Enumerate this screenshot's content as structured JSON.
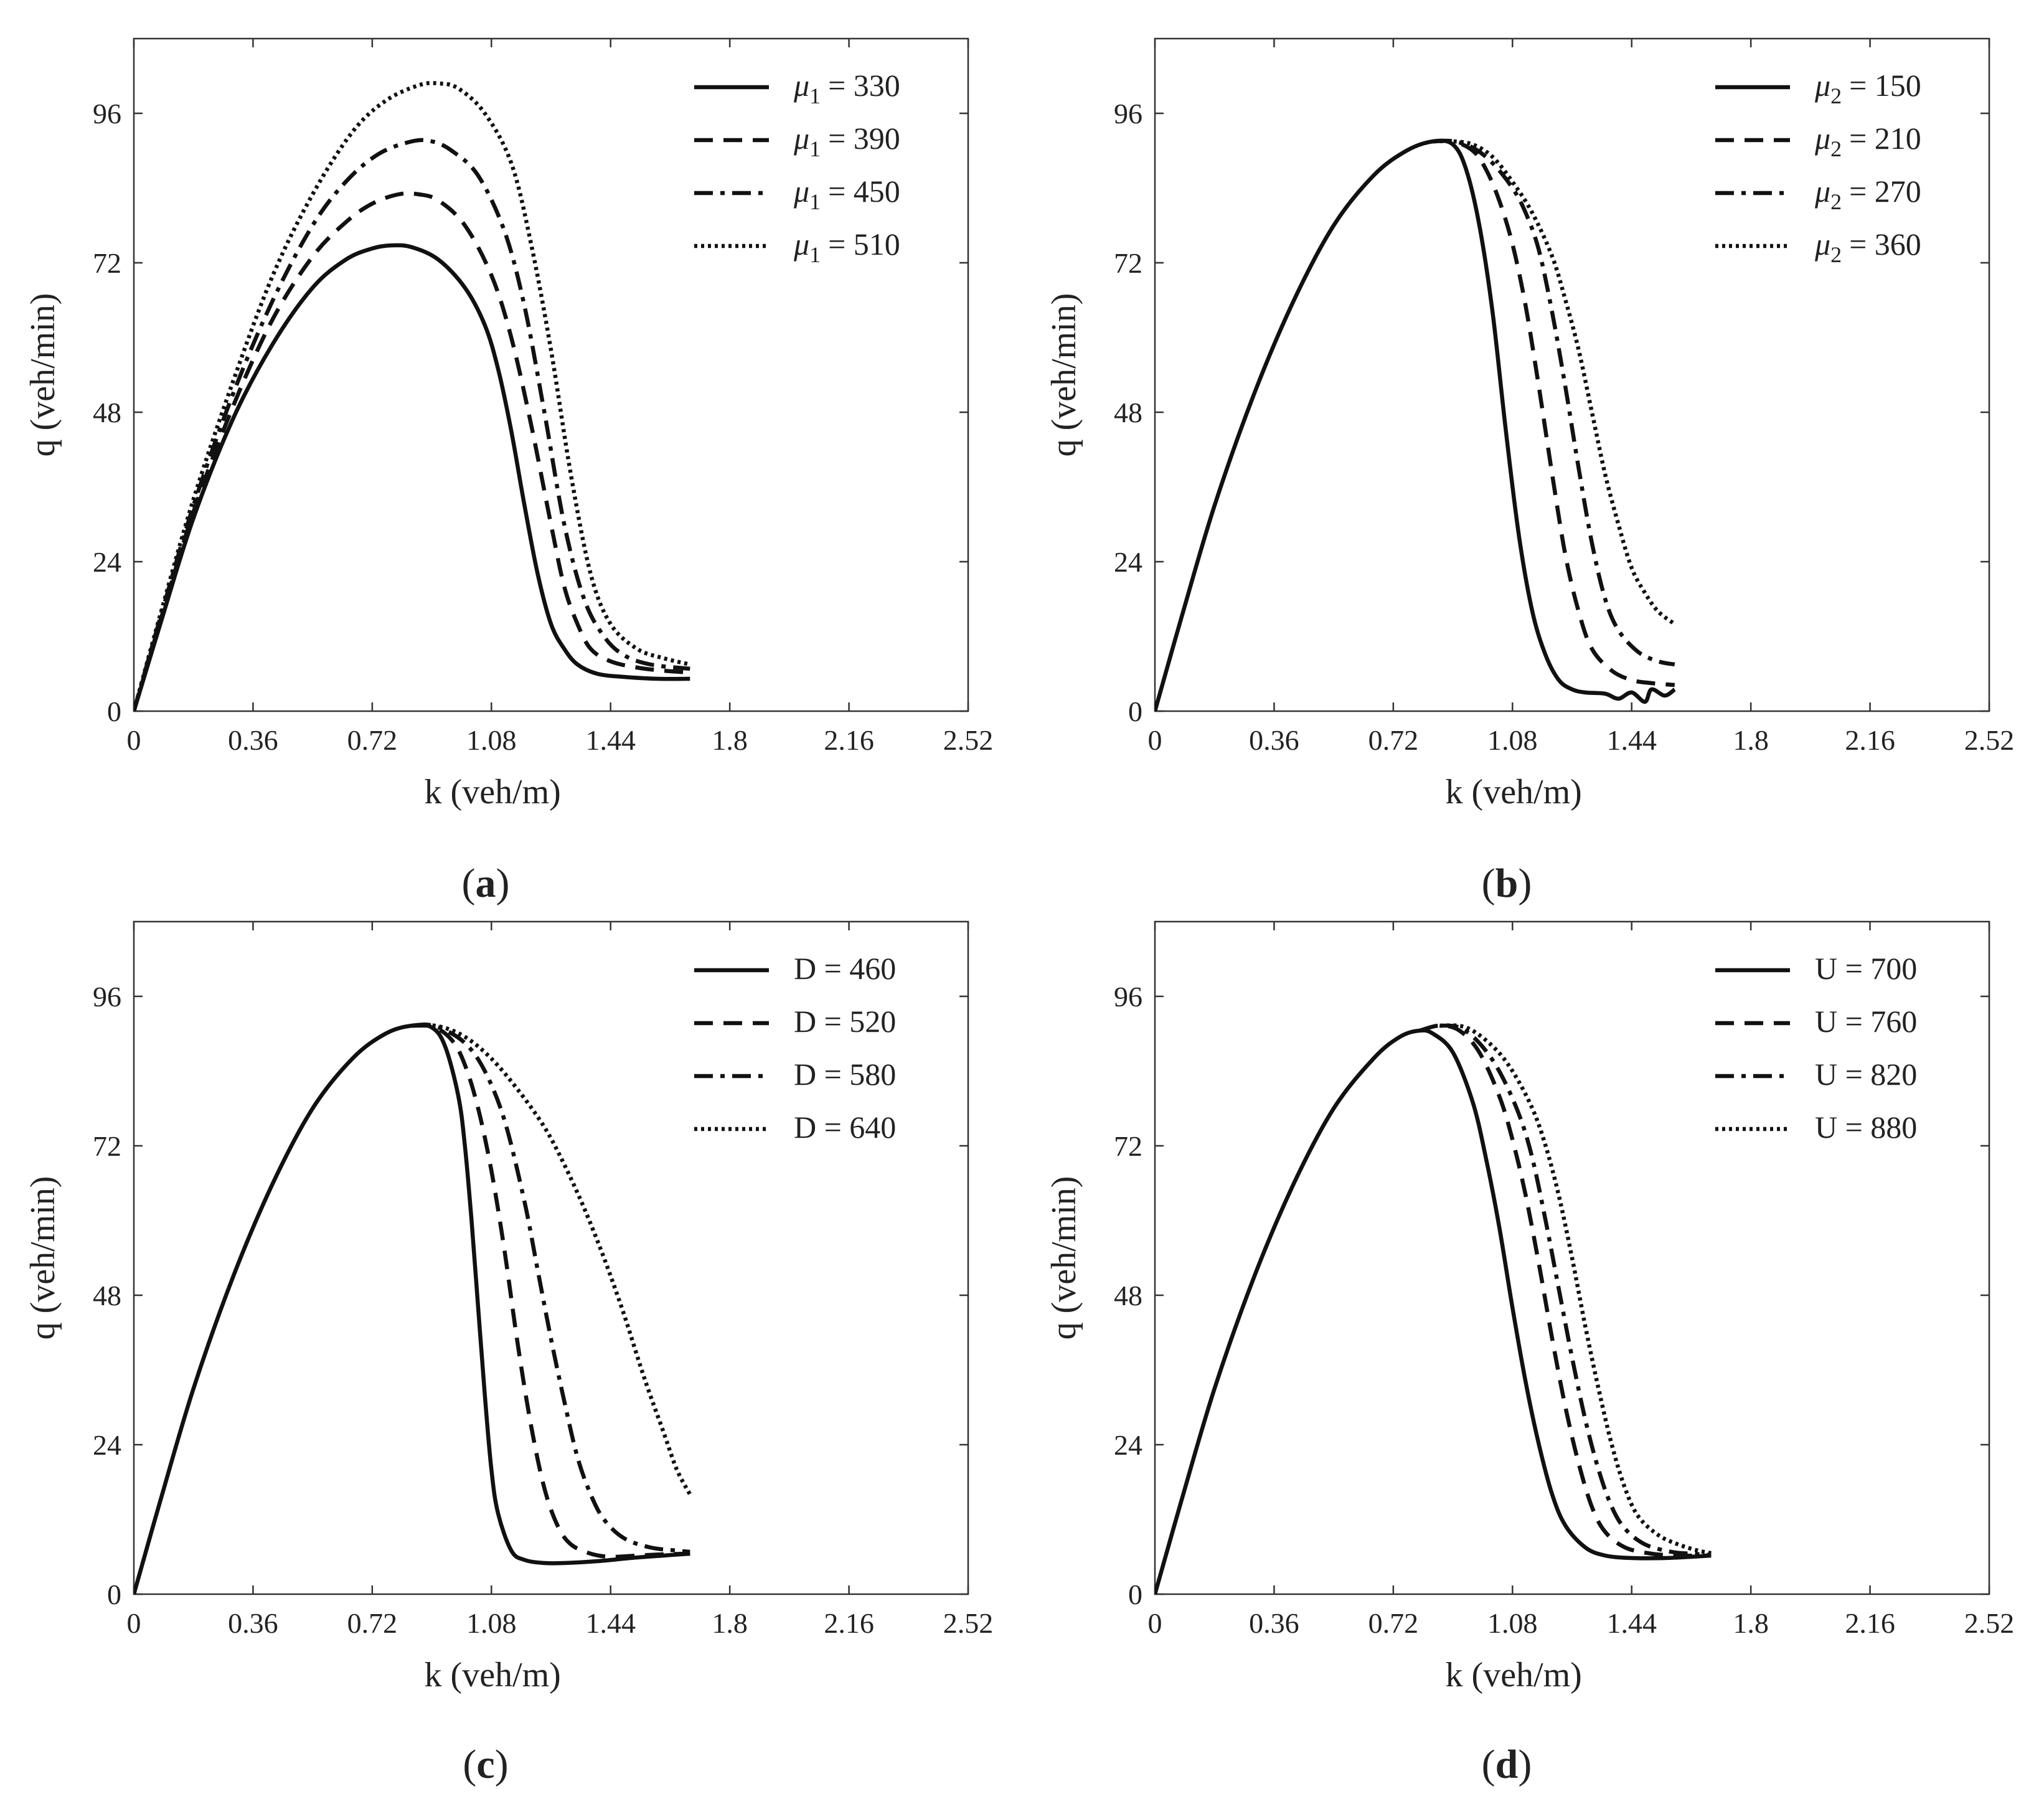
{
  "figure": {
    "panel_count": 4
  },
  "chart_data": [
    {
      "type": "line",
      "panel_label": "a",
      "xlabel": "k  (veh/m)",
      "ylabel": "q  (veh/min)",
      "xlim": [
        0,
        2.52
      ],
      "ylim": [
        0,
        108
      ],
      "x_ticks": [
        "0",
        "0.36",
        "0.72",
        "1.08",
        "1.44",
        "1.8",
        "2.16",
        "2.52"
      ],
      "y_ticks": [
        "0",
        "24",
        "48",
        "72",
        "96"
      ],
      "legend_position": "top-right",
      "series": [
        {
          "name": "μ1 = 330",
          "legend_symbol": "μ",
          "legend_sub": "1",
          "legend_value": "= 330",
          "style": "solid",
          "x": [
            0,
            0.08,
            0.18,
            0.3,
            0.42,
            0.54,
            0.64,
            0.72,
            0.78,
            0.84,
            0.92,
            1.0,
            1.06,
            1.1,
            1.14,
            1.18,
            1.22,
            1.26,
            1.3,
            1.34,
            1.4,
            1.48,
            1.58,
            1.68
          ],
          "y": [
            0,
            14,
            31,
            47,
            59,
            68,
            72.5,
            74.3,
            74.8,
            74.5,
            72.5,
            68,
            62,
            55,
            45,
            33,
            22,
            14,
            10,
            7.5,
            6,
            5.5,
            5.2,
            5.2
          ]
        },
        {
          "name": "μ1 = 390",
          "legend_symbol": "μ",
          "legend_sub": "1",
          "legend_value": "= 390",
          "style": "dashed",
          "x": [
            0,
            0.08,
            0.18,
            0.3,
            0.42,
            0.54,
            0.64,
            0.72,
            0.8,
            0.86,
            0.92,
            1.0,
            1.08,
            1.14,
            1.2,
            1.26,
            1.3,
            1.34,
            1.38,
            1.44,
            1.52,
            1.6,
            1.68
          ],
          "y": [
            0,
            14.5,
            32,
            49,
            63,
            73,
            78.5,
            81.5,
            83,
            83,
            82,
            78,
            70,
            60,
            46,
            30,
            20,
            14,
            10,
            8,
            7,
            6.5,
            6.2
          ]
        },
        {
          "name": "μ1 = 450",
          "legend_symbol": "μ",
          "legend_sub": "1",
          "legend_value": "= 450",
          "style": "dashdot",
          "x": [
            0,
            0.08,
            0.18,
            0.3,
            0.42,
            0.54,
            0.64,
            0.74,
            0.84,
            0.9,
            0.96,
            1.04,
            1.12,
            1.18,
            1.24,
            1.3,
            1.36,
            1.42,
            1.48,
            1.56,
            1.68
          ],
          "y": [
            0,
            15,
            33,
            51,
            66,
            78,
            85,
            89.5,
            91.5,
            91.5,
            90,
            86,
            77,
            65,
            48,
            30,
            18,
            12,
            9,
            7.5,
            6.8
          ]
        },
        {
          "name": "μ1 = 510",
          "legend_symbol": "μ",
          "legend_sub": "1",
          "legend_value": "= 510",
          "style": "dotted",
          "x": [
            0,
            0.08,
            0.18,
            0.3,
            0.42,
            0.54,
            0.66,
            0.76,
            0.86,
            0.92,
            0.98,
            1.06,
            1.14,
            1.2,
            1.26,
            1.32,
            1.38,
            1.44,
            1.52,
            1.6,
            1.68
          ],
          "y": [
            0,
            15.5,
            34,
            53,
            70,
            83,
            93,
            98,
            100.5,
            100.8,
            100,
            96,
            88,
            75,
            58,
            38,
            22,
            14,
            10,
            8.5,
            7.5
          ]
        }
      ]
    },
    {
      "type": "line",
      "panel_label": "b",
      "xlabel": "k  (veh/m)",
      "ylabel": "q  (veh/min)",
      "xlim": [
        0,
        2.52
      ],
      "ylim": [
        0,
        108
      ],
      "x_ticks": [
        "0",
        "0.36",
        "0.72",
        "1.08",
        "1.44",
        "1.8",
        "2.16",
        "2.52"
      ],
      "y_ticks": [
        "0",
        "24",
        "48",
        "72",
        "96"
      ],
      "legend_position": "top-right",
      "series": [
        {
          "name": "μ2 = 150",
          "legend_symbol": "μ",
          "legend_sub": "2",
          "legend_value": "= 150",
          "style": "solid",
          "x": [
            0,
            0.08,
            0.18,
            0.3,
            0.42,
            0.54,
            0.66,
            0.76,
            0.84,
            0.9,
            0.94,
            0.98,
            1.02,
            1.06,
            1.1,
            1.14,
            1.18,
            1.22,
            1.26,
            1.3,
            1.36,
            1.4,
            1.44,
            1.48,
            1.5,
            1.54,
            1.57
          ],
          "y": [
            0,
            15,
            33,
            51,
            66,
            78,
            86,
            90,
            91.5,
            91,
            87,
            78,
            64,
            45,
            28,
            16,
            9,
            5,
            3.5,
            3,
            2.8,
            2,
            3,
            1.5,
            3.5,
            2.5,
            3.5
          ]
        },
        {
          "name": "μ2 = 210",
          "legend_symbol": "μ",
          "legend_sub": "2",
          "legend_value": "= 210",
          "style": "dashed",
          "x": [
            0.84,
            0.9,
            0.96,
            1.0,
            1.04,
            1.08,
            1.12,
            1.16,
            1.2,
            1.24,
            1.28,
            1.32,
            1.38,
            1.44,
            1.5,
            1.57
          ],
          "y": [
            91.5,
            91.5,
            90,
            87,
            82,
            75,
            65,
            52,
            38,
            25,
            16,
            10,
            6.5,
            5,
            4.5,
            4.2
          ]
        },
        {
          "name": "μ2 = 270",
          "legend_symbol": "μ",
          "legend_sub": "2",
          "legend_value": "= 270",
          "style": "dashdot",
          "x": [
            0.84,
            0.9,
            0.96,
            1.02,
            1.08,
            1.12,
            1.16,
            1.2,
            1.24,
            1.28,
            1.32,
            1.36,
            1.4,
            1.46,
            1.52,
            1.57
          ],
          "y": [
            91.5,
            91.5,
            90.5,
            88,
            84,
            80,
            74,
            64,
            52,
            39,
            27,
            18,
            13,
            9.5,
            8,
            7.5
          ]
        },
        {
          "name": "μ2 = 360",
          "legend_symbol": "μ",
          "legend_sub": "2",
          "legend_value": "= 360",
          "style": "dotted",
          "x": [
            0.84,
            0.9,
            0.96,
            1.02,
            1.08,
            1.14,
            1.2,
            1.24,
            1.28,
            1.32,
            1.36,
            1.4,
            1.44,
            1.48,
            1.52,
            1.57
          ],
          "y": [
            91.5,
            91.5,
            91,
            89,
            85,
            80,
            73,
            66,
            58,
            48,
            38,
            30,
            23,
            19,
            16,
            14
          ]
        }
      ]
    },
    {
      "type": "line",
      "panel_label": "c",
      "xlabel": "k  (veh/m)",
      "ylabel": "q  (veh/min)",
      "xlim": [
        0,
        2.52
      ],
      "ylim": [
        0,
        108
      ],
      "x_ticks": [
        "0",
        "0.36",
        "0.72",
        "1.08",
        "1.44",
        "1.8",
        "2.16",
        "2.52"
      ],
      "y_ticks": [
        "0",
        "24",
        "48",
        "72",
        "96"
      ],
      "legend_position": "top-right",
      "series": [
        {
          "name": "D = 460",
          "legend_symbol": "",
          "legend_sub": "",
          "legend_value": "D = 460",
          "style": "solid",
          "x": [
            0,
            0.08,
            0.18,
            0.3,
            0.42,
            0.54,
            0.66,
            0.76,
            0.84,
            0.9,
            0.94,
            0.98,
            1.0,
            1.02,
            1.04,
            1.06,
            1.08,
            1.1,
            1.14,
            1.18,
            1.24,
            1.3,
            1.4,
            1.5,
            1.6,
            1.68
          ],
          "y": [
            0,
            15,
            33,
            51,
            66,
            78,
            86,
            90,
            91.3,
            91,
            88,
            80,
            72,
            60,
            46,
            32,
            20,
            13,
            7,
            5.5,
            5,
            5,
            5.3,
            5.8,
            6.2,
            6.5
          ]
        },
        {
          "name": "D = 520",
          "legend_symbol": "",
          "legend_sub": "",
          "legend_value": "D = 520",
          "style": "dashed",
          "x": [
            0.84,
            0.9,
            0.96,
            1.0,
            1.04,
            1.08,
            1.12,
            1.16,
            1.2,
            1.24,
            1.28,
            1.32,
            1.38,
            1.44,
            1.52,
            1.6,
            1.68
          ],
          "y": [
            91.3,
            91.3,
            89,
            85,
            78,
            68,
            55,
            40,
            27,
            17,
            11,
            8,
            6.5,
            6,
            6.2,
            6.4,
            6.5
          ]
        },
        {
          "name": "D = 580",
          "legend_symbol": "",
          "legend_sub": "",
          "legend_value": "D = 580",
          "style": "dashdot",
          "x": [
            0.84,
            0.92,
            1.0,
            1.06,
            1.12,
            1.18,
            1.22,
            1.26,
            1.3,
            1.34,
            1.38,
            1.42,
            1.48,
            1.56,
            1.64,
            1.68
          ],
          "y": [
            91.3,
            91,
            88.5,
            84,
            76,
            63,
            52,
            41,
            31,
            22,
            16,
            12,
            9,
            7.5,
            7,
            6.8
          ]
        },
        {
          "name": "D = 640",
          "legend_symbol": "",
          "legend_sub": "",
          "legend_value": "D = 640",
          "style": "dotted",
          "x": [
            0.84,
            0.92,
            1.0,
            1.08,
            1.16,
            1.24,
            1.3,
            1.36,
            1.42,
            1.48,
            1.54,
            1.6,
            1.64,
            1.68
          ],
          "y": [
            91.3,
            91.2,
            89.5,
            86,
            81,
            75,
            69,
            62,
            54,
            45,
            35,
            26,
            20,
            16
          ]
        }
      ]
    },
    {
      "type": "line",
      "panel_label": "d",
      "xlabel": "k  (veh/m)",
      "ylabel": "q  (veh/min)",
      "xlim": [
        0,
        2.52
      ],
      "ylim": [
        0,
        108
      ],
      "x_ticks": [
        "0",
        "0.36",
        "0.72",
        "1.08",
        "1.44",
        "1.8",
        "2.16",
        "2.52"
      ],
      "y_ticks": [
        "0",
        "24",
        "48",
        "72",
        "96"
      ],
      "legend_position": "top-right",
      "series": [
        {
          "name": "U = 700",
          "legend_symbol": "",
          "legend_sub": "",
          "legend_value": "U = 700",
          "style": "solid",
          "x": [
            0,
            0.08,
            0.18,
            0.3,
            0.42,
            0.54,
            0.66,
            0.74,
            0.8,
            0.84,
            0.9,
            0.96,
            1.0,
            1.04,
            1.08,
            1.12,
            1.16,
            1.2,
            1.24,
            1.3,
            1.36,
            1.44,
            1.54,
            1.62,
            1.68
          ],
          "y": [
            0,
            15,
            33,
            51,
            66,
            78,
            86,
            89.5,
            90.5,
            90,
            87,
            79,
            70,
            59,
            46,
            34,
            24,
            16,
            11,
            7.5,
            6.2,
            5.8,
            5.8,
            6,
            6.2
          ]
        },
        {
          "name": "U = 760",
          "legend_symbol": "",
          "legend_sub": "",
          "legend_value": "U = 760",
          "style": "dashed",
          "x": [
            0.8,
            0.86,
            0.92,
            0.98,
            1.04,
            1.08,
            1.12,
            1.16,
            1.2,
            1.24,
            1.28,
            1.32,
            1.36,
            1.42,
            1.5,
            1.58,
            1.68
          ],
          "y": [
            90.5,
            91.3,
            90.5,
            87,
            80,
            73,
            64,
            53,
            41,
            30,
            21,
            14,
            10,
            7.5,
            6.5,
            6.2,
            6.2
          ]
        },
        {
          "name": "U = 820",
          "legend_symbol": "",
          "legend_sub": "",
          "legend_value": "U = 820",
          "style": "dashdot",
          "x": [
            0.86,
            0.92,
            0.98,
            1.04,
            1.1,
            1.14,
            1.18,
            1.22,
            1.26,
            1.3,
            1.34,
            1.38,
            1.42,
            1.48,
            1.56,
            1.62,
            1.68
          ],
          "y": [
            91.3,
            91,
            88.5,
            84,
            77,
            70,
            60,
            49,
            38,
            28,
            20,
            14,
            10.5,
            8,
            6.8,
            6.5,
            6.3
          ]
        },
        {
          "name": "U = 880",
          "legend_symbol": "",
          "legend_sub": "",
          "legend_value": "U = 880",
          "style": "dotted",
          "x": [
            0.86,
            0.94,
            1.02,
            1.08,
            1.14,
            1.18,
            1.22,
            1.26,
            1.3,
            1.34,
            1.38,
            1.42,
            1.46,
            1.52,
            1.58,
            1.64,
            1.68
          ],
          "y": [
            91.3,
            91,
            88,
            84,
            78,
            72,
            64,
            54,
            43,
            33,
            24,
            17,
            12.5,
            9.5,
            8,
            7,
            6.6
          ]
        }
      ]
    }
  ]
}
